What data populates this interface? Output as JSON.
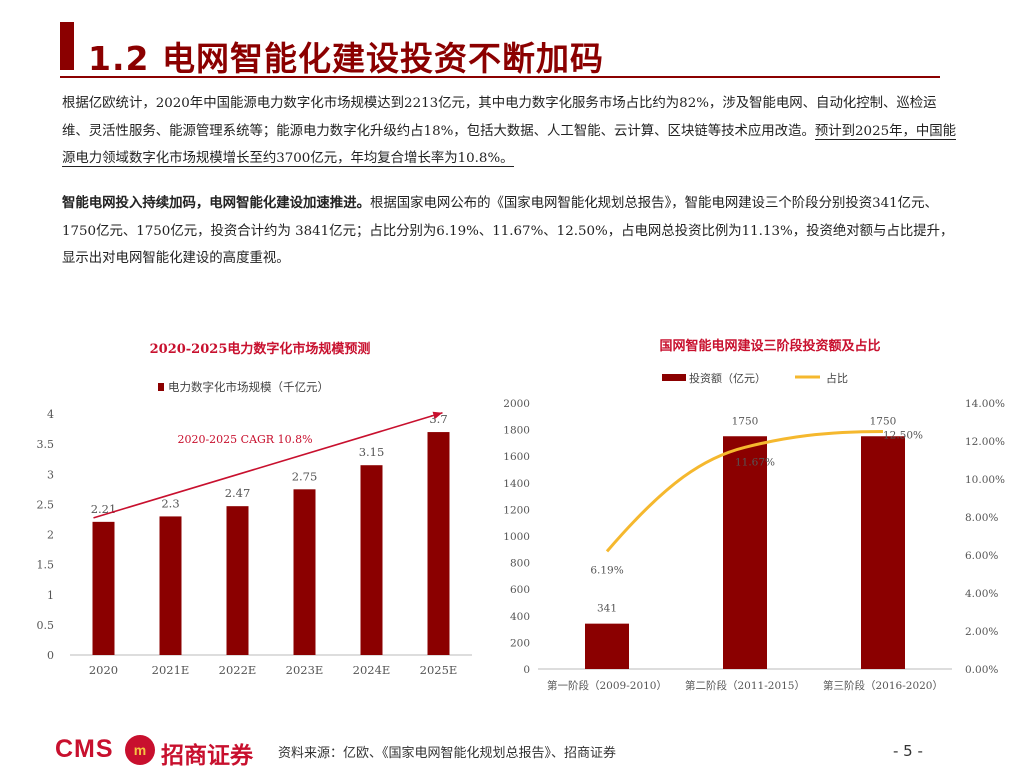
{
  "header": {
    "title": "1.2 电网智能化建设投资不断加码"
  },
  "paragraph1": {
    "part1": "根据亿欧统计，2020年中国能源电力数字化市场规模达到2213亿元，其中电力数字化服务市场占比约为82%，涉及智能电网、自动化控制、巡检运维、灵活性服务、能源管理系统等；能源电力数字化升级约占18%，包括大数据、人工智能、云计算、区块链等技术应用改造。",
    "part2": "预计到2025年，中国能源电力领域数字化市场规模增长至约3700亿元，年均复合增长率为10.8%。"
  },
  "paragraph2": {
    "bold": "智能电网投入持续加码，电网智能化建设加速推进。",
    "rest": "根据国家电网公布的《国家电网智能化规划总报告》，智能电网建设三个阶段分别投资341亿元、1750亿元、1750亿元，投资合计约为 3841亿元；占比分别为6.19%、11.67%、12.50%，占电网总投资比例为11.13%，投资绝对额与占比提升，显示出对电网智能化建设的高度重视。"
  },
  "chart_data": [
    {
      "type": "bar",
      "title": "2020-2025电力数字化市场规模预测",
      "legend": "电力数字化市场规模（千亿元）",
      "categories": [
        "2020",
        "2021E",
        "2022E",
        "2023E",
        "2024E",
        "2025E"
      ],
      "values": [
        2.21,
        2.3,
        2.47,
        2.75,
        3.15,
        3.7
      ],
      "value_labels": [
        "2.21",
        "2.3",
        "2.47",
        "2.75",
        "3.15",
        "3.7"
      ],
      "yticks": [
        "0",
        "0.5",
        "1",
        "1.5",
        "2",
        "2.5",
        "3",
        "3.5",
        "4"
      ],
      "ylim": [
        0,
        4
      ],
      "annotation": "2020-2025 CAGR 10.8%",
      "bar_color": "#8b0000",
      "accent": "#c8102e"
    },
    {
      "type": "bar+line",
      "title": "国网智能电网建设三阶段投资额及占比",
      "categories": [
        "第一阶段（2009-2010）",
        "第二阶段（2011-2015）",
        "第三阶段（2016-2020）"
      ],
      "series": [
        {
          "name": "投资额（亿元）",
          "values": [
            341,
            1750,
            1750
          ],
          "labels": [
            "341",
            "1750",
            "1750"
          ],
          "axis": "left",
          "color": "#8b0000"
        },
        {
          "name": "占比",
          "values": [
            6.19,
            11.67,
            12.5
          ],
          "labels": [
            "6.19%",
            "11.67%",
            "12.50%"
          ],
          "axis": "right",
          "color": "#f5b82e"
        }
      ],
      "yticks_left": [
        "0",
        "200",
        "400",
        "600",
        "800",
        "1000",
        "1200",
        "1400",
        "1600",
        "1800",
        "2000"
      ],
      "ylim_left": [
        0,
        2000
      ],
      "yticks_right": [
        "0.00%",
        "2.00%",
        "4.00%",
        "6.00%",
        "8.00%",
        "10.00%",
        "12.00%",
        "14.00%"
      ],
      "ylim_right": [
        0,
        14
      ]
    }
  ],
  "footer": {
    "logo_text": "CMS",
    "logo_mark": "m",
    "logo_cn": "招商证券",
    "source": "资料来源：亿欧、《国家电网智能化规划总报告》、招商证券",
    "page": "- 5 -"
  }
}
